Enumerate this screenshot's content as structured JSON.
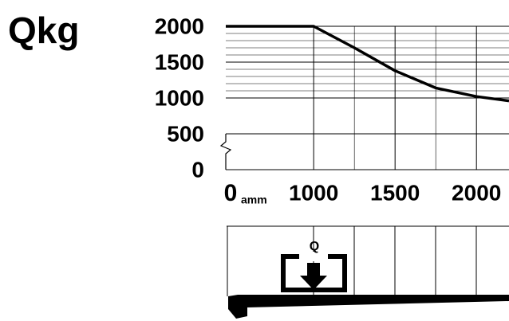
{
  "chart_data": {
    "type": "line",
    "title": "Qkg",
    "x_origin_label": "0",
    "x_unit": "amm",
    "x": [
      460,
      1000,
      1250,
      1500,
      1750,
      2000,
      2200
    ],
    "series": [
      {
        "name": null,
        "color": "#000000",
        "values": [
          2000,
          2000,
          1700,
          1380,
          1140,
          1020,
          960
        ]
      }
    ],
    "xlim": [
      460,
      2200
    ],
    "xticks": [
      1000,
      1500,
      2000
    ],
    "ylim": [
      0,
      2000
    ],
    "yticks": [
      0,
      500,
      1000,
      1500,
      2000
    ],
    "yminor": [
      1100,
      1200,
      1300,
      1400,
      1600,
      1700,
      1800,
      1900
    ],
    "xminor": [
      1250,
      1750
    ],
    "grid": true,
    "load_label": "Q"
  }
}
